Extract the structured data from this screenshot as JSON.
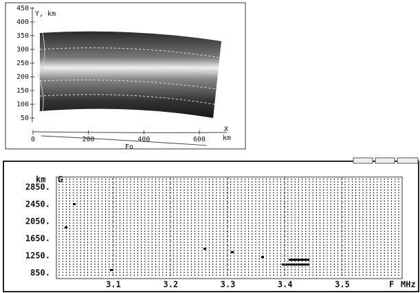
{
  "top_plot": {
    "y_label": "Y, km",
    "y_ticks": [
      450,
      400,
      350,
      300,
      250,
      200,
      150,
      100,
      50
    ],
    "x_ticks": [
      0,
      200,
      400,
      600
    ],
    "x_label": "X",
    "x_unit": "km",
    "curve_label": "Fo"
  },
  "bottom_plot": {
    "y_unit": "km",
    "y_ticks": [
      "2850.",
      "2450.",
      "2050.",
      "1650.",
      "1250.",
      "850."
    ],
    "x_ticks": [
      3.1,
      3.2,
      3.3,
      3.4,
      3.5
    ],
    "x_label": "F",
    "x_unit": "MHz",
    "mode": "G"
  }
}
